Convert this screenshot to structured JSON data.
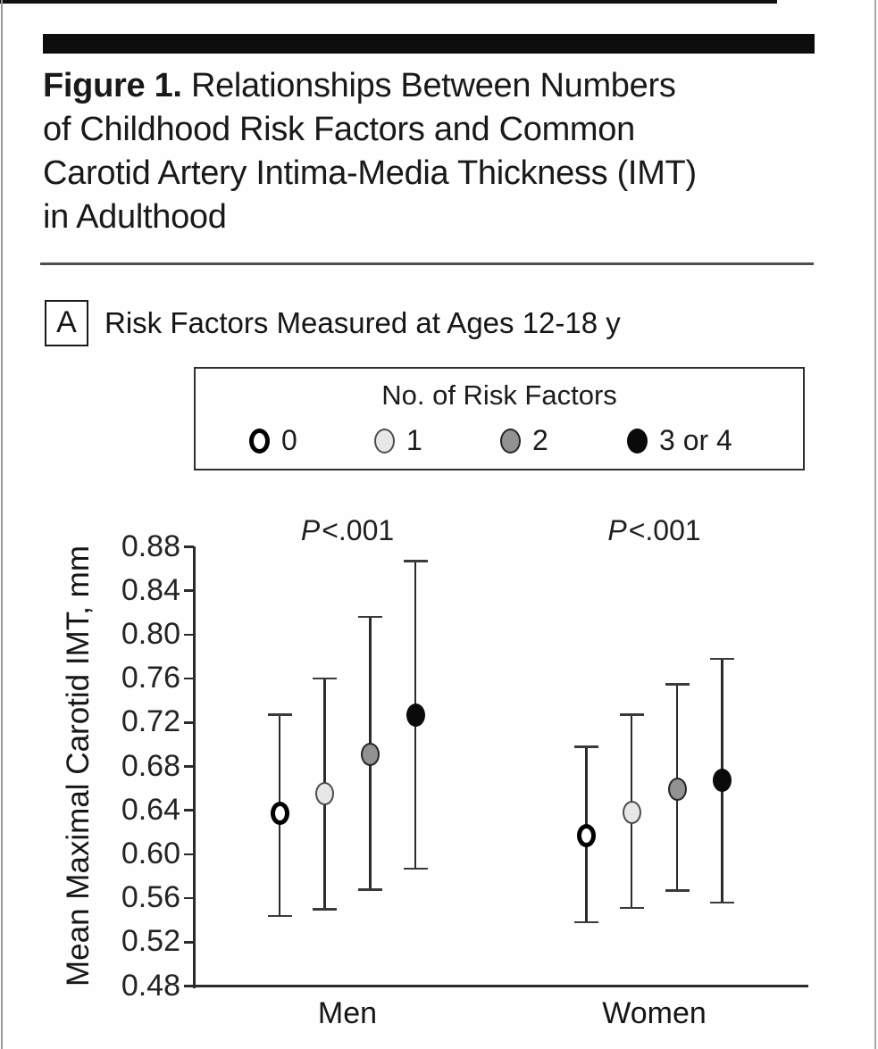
{
  "page": {
    "title_prefix": "Figure 1.",
    "title_lines": [
      "Relationships Between Numbers",
      "of Childhood Risk Factors and Common",
      "Carotid Artery Intima-Media Thickness (IMT)",
      "in Adulthood"
    ],
    "panel_letter": "A",
    "panel_label": "Risk Factors Measured at Ages 12-18 y"
  },
  "legend": {
    "title": "No. of Risk Factors",
    "items": [
      {
        "label": "0",
        "fill": "#ffffff",
        "stroke": "#000000",
        "stroke_width": 5
      },
      {
        "label": "1",
        "fill": "#e7e7e7",
        "stroke": "#4d4d4d",
        "stroke_width": 2
      },
      {
        "label": "2",
        "fill": "#929292",
        "stroke": "#262626",
        "stroke_width": 2
      },
      {
        "label": "3 or 4",
        "fill": "#0a0a0a",
        "stroke": "#0a0a0a",
        "stroke_width": 2
      }
    ]
  },
  "chart_data": {
    "type": "scatter",
    "title": "",
    "xlabel": "",
    "ylabel": "Mean Maximal Carotid IMT, mm",
    "ylim": [
      0.48,
      0.88
    ],
    "yticks": [
      0.48,
      0.52,
      0.56,
      0.6,
      0.64,
      0.68,
      0.72,
      0.76,
      0.8,
      0.84,
      0.88
    ],
    "ytick_decimals": 2,
    "grid": false,
    "legend_position": "top",
    "series_labels": [
      "0",
      "1",
      "2",
      "3 or 4"
    ],
    "value_unit": "mm",
    "groups": [
      {
        "label": "Men",
        "p_label": "P<.001",
        "points": [
          {
            "risk_factors": "0",
            "mean": 0.637,
            "lo": 0.544,
            "hi": 0.727
          },
          {
            "risk_factors": "1",
            "mean": 0.655,
            "lo": 0.55,
            "hi": 0.76
          },
          {
            "risk_factors": "2",
            "mean": 0.691,
            "lo": 0.568,
            "hi": 0.816
          },
          {
            "risk_factors": "3 or 4",
            "mean": 0.727,
            "lo": 0.587,
            "hi": 0.867
          }
        ]
      },
      {
        "label": "Women",
        "p_label": "P<.001",
        "points": [
          {
            "risk_factors": "0",
            "mean": 0.617,
            "lo": 0.538,
            "hi": 0.698
          },
          {
            "risk_factors": "1",
            "mean": 0.638,
            "lo": 0.551,
            "hi": 0.727
          },
          {
            "risk_factors": "2",
            "mean": 0.659,
            "lo": 0.567,
            "hi": 0.755
          },
          {
            "risk_factors": "3 or 4",
            "mean": 0.667,
            "lo": 0.556,
            "hi": 0.778
          }
        ]
      }
    ]
  }
}
